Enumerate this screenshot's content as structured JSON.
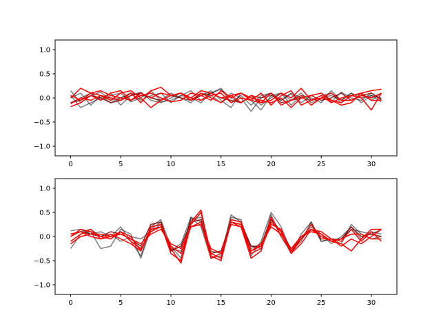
{
  "chart_data": [
    {
      "type": "line",
      "title": "",
      "xlabel": "",
      "ylabel": "",
      "xlim": [
        -1.55,
        32.55
      ],
      "ylim": [
        -1.2,
        1.2
      ],
      "xticks": [
        0,
        5,
        10,
        15,
        20,
        25,
        30
      ],
      "yticks": [
        -1.0,
        -0.5,
        0.0,
        0.5,
        1.0
      ],
      "xtick_labels": [
        "0",
        "5",
        "10",
        "15",
        "20",
        "25",
        "30"
      ],
      "ytick_labels": [
        "−1.0",
        "−0.5",
        "0.0",
        "0.5",
        "1.0"
      ],
      "grid": false,
      "x": [
        0,
        1,
        2,
        3,
        4,
        5,
        6,
        7,
        8,
        9,
        10,
        11,
        12,
        13,
        14,
        15,
        16,
        17,
        18,
        19,
        20,
        21,
        22,
        23,
        24,
        25,
        26,
        27,
        28,
        29,
        30,
        31
      ],
      "series": [
        {
          "color": "#000000",
          "opacity": 0.5,
          "values": [
            0.15,
            -0.1,
            0.05,
            0.12,
            -0.05,
            0.0,
            0.1,
            0.05,
            0.02,
            -0.08,
            -0.05,
            0.05,
            0.15,
            -0.05,
            0.1,
            0.2,
            -0.1,
            0.05,
            -0.15,
            0.05,
            0.1,
            -0.05,
            0.08,
            -0.1,
            0.05,
            0.1,
            -0.08,
            0.12,
            0.0,
            -0.05,
            0.1,
            -0.05
          ]
        },
        {
          "color": "#000000",
          "opacity": 0.5,
          "values": [
            0.05,
            -0.2,
            -0.1,
            0.0,
            0.1,
            -0.15,
            0.05,
            0.12,
            -0.05,
            -0.1,
            0.0,
            0.1,
            -0.05,
            0.05,
            0.15,
            -0.05,
            -0.2,
            0.1,
            -0.05,
            -0.25,
            0.05,
            0.1,
            -0.15,
            0.05,
            0.0,
            -0.1,
            0.15,
            -0.05,
            0.1,
            -0.1,
            0.05,
            0.0
          ]
        },
        {
          "color": "#000000",
          "opacity": 0.5,
          "values": [
            -0.1,
            0.0,
            0.1,
            -0.05,
            0.05,
            0.1,
            -0.08,
            0.0,
            0.15,
            -0.05,
            0.1,
            0.0,
            -0.1,
            0.1,
            0.05,
            -0.1,
            0.1,
            0.0,
            -0.28,
            0.0,
            0.05,
            -0.05,
            0.1,
            0.0,
            -0.05,
            0.05,
            0.1,
            -0.1,
            0.05,
            0.08,
            -0.05,
            0.1
          ]
        },
        {
          "color": "#000000",
          "opacity": 0.5,
          "values": [
            0.0,
            0.1,
            -0.15,
            0.05,
            -0.1,
            0.0,
            0.1,
            -0.05,
            0.05,
            0.1,
            -0.1,
            0.05,
            0.0,
            -0.1,
            0.1,
            0.18,
            0.0,
            -0.1,
            0.05,
            -0.15,
            0.0,
            0.1,
            -0.05,
            0.1,
            -0.1,
            0.0,
            0.05,
            -0.05,
            0.1,
            0.0,
            0.05,
            -0.08
          ]
        },
        {
          "color": "#800000",
          "opacity": 0.85,
          "values": [
            -0.1,
            -0.05,
            0.05,
            0.0,
            -0.1,
            -0.05,
            0.05,
            0.1,
            0.0,
            -0.05,
            0.05,
            0.0,
            -0.05,
            0.05,
            0.1,
            0.0,
            -0.05,
            -0.1,
            0.05,
            0.0,
            0.1,
            -0.1,
            -0.05,
            0.0,
            0.05,
            -0.05,
            0.0,
            0.1,
            -0.05,
            0.05,
            0.1,
            -0.03
          ]
        },
        {
          "color": "#ff0000",
          "opacity": 1,
          "values": [
            0.0,
            0.2,
            0.1,
            0.05,
            -0.05,
            0.1,
            0.15,
            0.0,
            -0.2,
            -0.05,
            0.05,
            0.1,
            0.0,
            0.15,
            0.1,
            0.0,
            0.05,
            -0.1,
            0.05,
            -0.1,
            -0.05,
            0.1,
            0.0,
            0.2,
            -0.05,
            0.05,
            -0.1,
            0.0,
            0.05,
            0.1,
            0.15,
            0.18
          ]
        },
        {
          "color": "#ff0000",
          "opacity": 1,
          "values": [
            -0.18,
            -0.1,
            0.05,
            -0.05,
            0.1,
            0.15,
            -0.05,
            0.1,
            0.0,
            0.1,
            0.05,
            0.1,
            0.0,
            -0.05,
            0.05,
            0.1,
            -0.1,
            0.0,
            -0.05,
            -0.1,
            0.1,
            -0.15,
            -0.05,
            0.05,
            -0.15,
            0.0,
            -0.05,
            -0.15,
            -0.1,
            0.1,
            -0.05,
            -0.05
          ]
        },
        {
          "color": "#ff0000",
          "opacity": 1,
          "values": [
            -0.12,
            0.0,
            -0.05,
            0.05,
            0.0,
            -0.05,
            0.1,
            -0.1,
            0.15,
            0.22,
            0.05,
            0.1,
            -0.05,
            0.1,
            0.0,
            -0.1,
            0.05,
            0.1,
            0.0,
            -0.05,
            -0.1,
            0.0,
            -0.2,
            0.0,
            0.05,
            0.1,
            -0.05,
            -0.1,
            0.05,
            0.0,
            -0.25,
            0.1
          ]
        },
        {
          "color": "#ff0000",
          "opacity": 1,
          "values": [
            0.05,
            -0.05,
            0.1,
            0.15,
            0.05,
            0.0,
            -0.05,
            0.05,
            0.1,
            0.0,
            -0.08,
            -0.05,
            0.1,
            0.05,
            -0.05,
            0.15,
            0.0,
            0.1,
            -0.05,
            0.1,
            -0.15,
            0.05,
            0.15,
            -0.15,
            -0.05,
            0.0,
            0.1,
            -0.05,
            -0.05,
            0.05,
            0.0,
            0.1
          ]
        }
      ]
    },
    {
      "type": "line",
      "title": "",
      "xlabel": "",
      "ylabel": "",
      "xlim": [
        -1.55,
        32.55
      ],
      "ylim": [
        -1.2,
        1.2
      ],
      "xticks": [
        0,
        5,
        10,
        15,
        20,
        25,
        30
      ],
      "yticks": [
        -1.0,
        -0.5,
        0.0,
        0.5,
        1.0
      ],
      "xtick_labels": [
        "0",
        "5",
        "10",
        "15",
        "20",
        "25",
        "30"
      ],
      "ytick_labels": [
        "−1.0",
        "−0.5",
        "0.0",
        "0.5",
        "1.0"
      ],
      "grid": false,
      "x": [
        0,
        1,
        2,
        3,
        4,
        5,
        6,
        7,
        8,
        9,
        10,
        11,
        12,
        13,
        14,
        15,
        16,
        17,
        18,
        19,
        20,
        21,
        22,
        23,
        24,
        25,
        26,
        27,
        28,
        29,
        30,
        31
      ],
      "series": [
        {
          "color": "#000000",
          "opacity": 0.5,
          "values": [
            0.12,
            0.15,
            0.05,
            0.1,
            0.0,
            0.2,
            -0.1,
            -0.4,
            0.2,
            0.35,
            -0.2,
            -0.45,
            0.4,
            0.3,
            -0.4,
            -0.5,
            0.4,
            0.35,
            -0.4,
            -0.1,
            0.5,
            0.2,
            -0.3,
            -0.1,
            0.3,
            -0.1,
            -0.05,
            -0.15,
            0.25,
            0.05,
            -0.05,
            0.0
          ]
        },
        {
          "color": "#000000",
          "opacity": 0.5,
          "values": [
            -0.25,
            0.05,
            0.1,
            -0.25,
            -0.2,
            0.15,
            0.05,
            -0.45,
            0.15,
            0.3,
            -0.3,
            -0.15,
            0.4,
            0.2,
            -0.45,
            -0.4,
            0.45,
            0.3,
            -0.2,
            -0.25,
            0.45,
            0.0,
            -0.35,
            0.05,
            0.3,
            -0.1,
            -0.05,
            -0.05,
            0.15,
            0.1,
            0.05,
            0.15
          ]
        },
        {
          "color": "#000000",
          "opacity": 0.5,
          "values": [
            0.0,
            0.1,
            0.15,
            0.0,
            0.05,
            -0.1,
            0.0,
            -0.05,
            0.1,
            0.25,
            -0.25,
            -0.3,
            0.35,
            0.4,
            -0.3,
            -0.35,
            0.35,
            0.3,
            -0.25,
            -0.15,
            0.35,
            0.1,
            -0.25,
            -0.05,
            0.2,
            0.05,
            -0.15,
            0.0,
            0.2,
            -0.05,
            0.1,
            0.05
          ]
        },
        {
          "color": "#800000",
          "opacity": 0.85,
          "values": [
            0.05,
            0.1,
            0.05,
            0.0,
            0.1,
            0.05,
            -0.05,
            -0.2,
            0.25,
            0.3,
            -0.3,
            -0.2,
            0.3,
            0.35,
            -0.35,
            -0.3,
            0.3,
            0.25,
            -0.2,
            -0.2,
            0.35,
            0.1,
            -0.3,
            -0.05,
            0.15,
            0.05,
            -0.1,
            -0.05,
            0.2,
            0.0,
            0.05,
            0.0
          ]
        },
        {
          "color": "#ff0000",
          "opacity": 1,
          "values": [
            0.0,
            0.15,
            0.1,
            0.0,
            -0.05,
            0.1,
            0.0,
            -0.3,
            0.2,
            0.25,
            -0.35,
            -0.5,
            0.3,
            0.55,
            -0.4,
            -0.5,
            0.3,
            0.2,
            -0.45,
            -0.3,
            0.4,
            0.0,
            -0.3,
            0.0,
            0.15,
            0.1,
            -0.05,
            -0.1,
            0.15,
            -0.1,
            0.1,
            -0.1
          ]
        },
        {
          "color": "#ff0000",
          "opacity": 1,
          "values": [
            -0.1,
            0.05,
            0.15,
            -0.05,
            0.0,
            0.1,
            -0.1,
            -0.25,
            0.1,
            0.2,
            -0.25,
            -0.55,
            0.25,
            0.5,
            -0.35,
            -0.45,
            0.35,
            0.3,
            -0.3,
            -0.2,
            0.3,
            0.1,
            -0.35,
            -0.05,
            0.25,
            -0.05,
            -0.05,
            -0.2,
            -0.05,
            -0.15,
            0.0,
            0.15
          ]
        },
        {
          "color": "#ff0000",
          "opacity": 1,
          "values": [
            0.05,
            0.1,
            0.0,
            -0.05,
            0.05,
            -0.05,
            -0.15,
            -0.3,
            0.15,
            0.2,
            -0.2,
            -0.35,
            0.2,
            0.3,
            -0.45,
            -0.35,
            0.25,
            0.2,
            -0.35,
            -0.25,
            0.25,
            0.15,
            -0.35,
            -0.15,
            0.15,
            0.0,
            -0.1,
            -0.15,
            -0.3,
            -0.05,
            0.15,
            0.15
          ]
        },
        {
          "color": "#ff0000",
          "opacity": 1,
          "values": [
            -0.15,
            0.0,
            0.05,
            0.05,
            0.0,
            0.05,
            -0.05,
            -0.15,
            0.05,
            0.15,
            -0.15,
            -0.25,
            0.2,
            0.25,
            -0.25,
            -0.35,
            0.3,
            0.25,
            -0.3,
            -0.15,
            0.2,
            0.05,
            -0.25,
            0.0,
            0.1,
            0.05,
            -0.1,
            -0.05,
            0.05,
            0.05,
            -0.05,
            -0.05
          ]
        }
      ]
    }
  ]
}
